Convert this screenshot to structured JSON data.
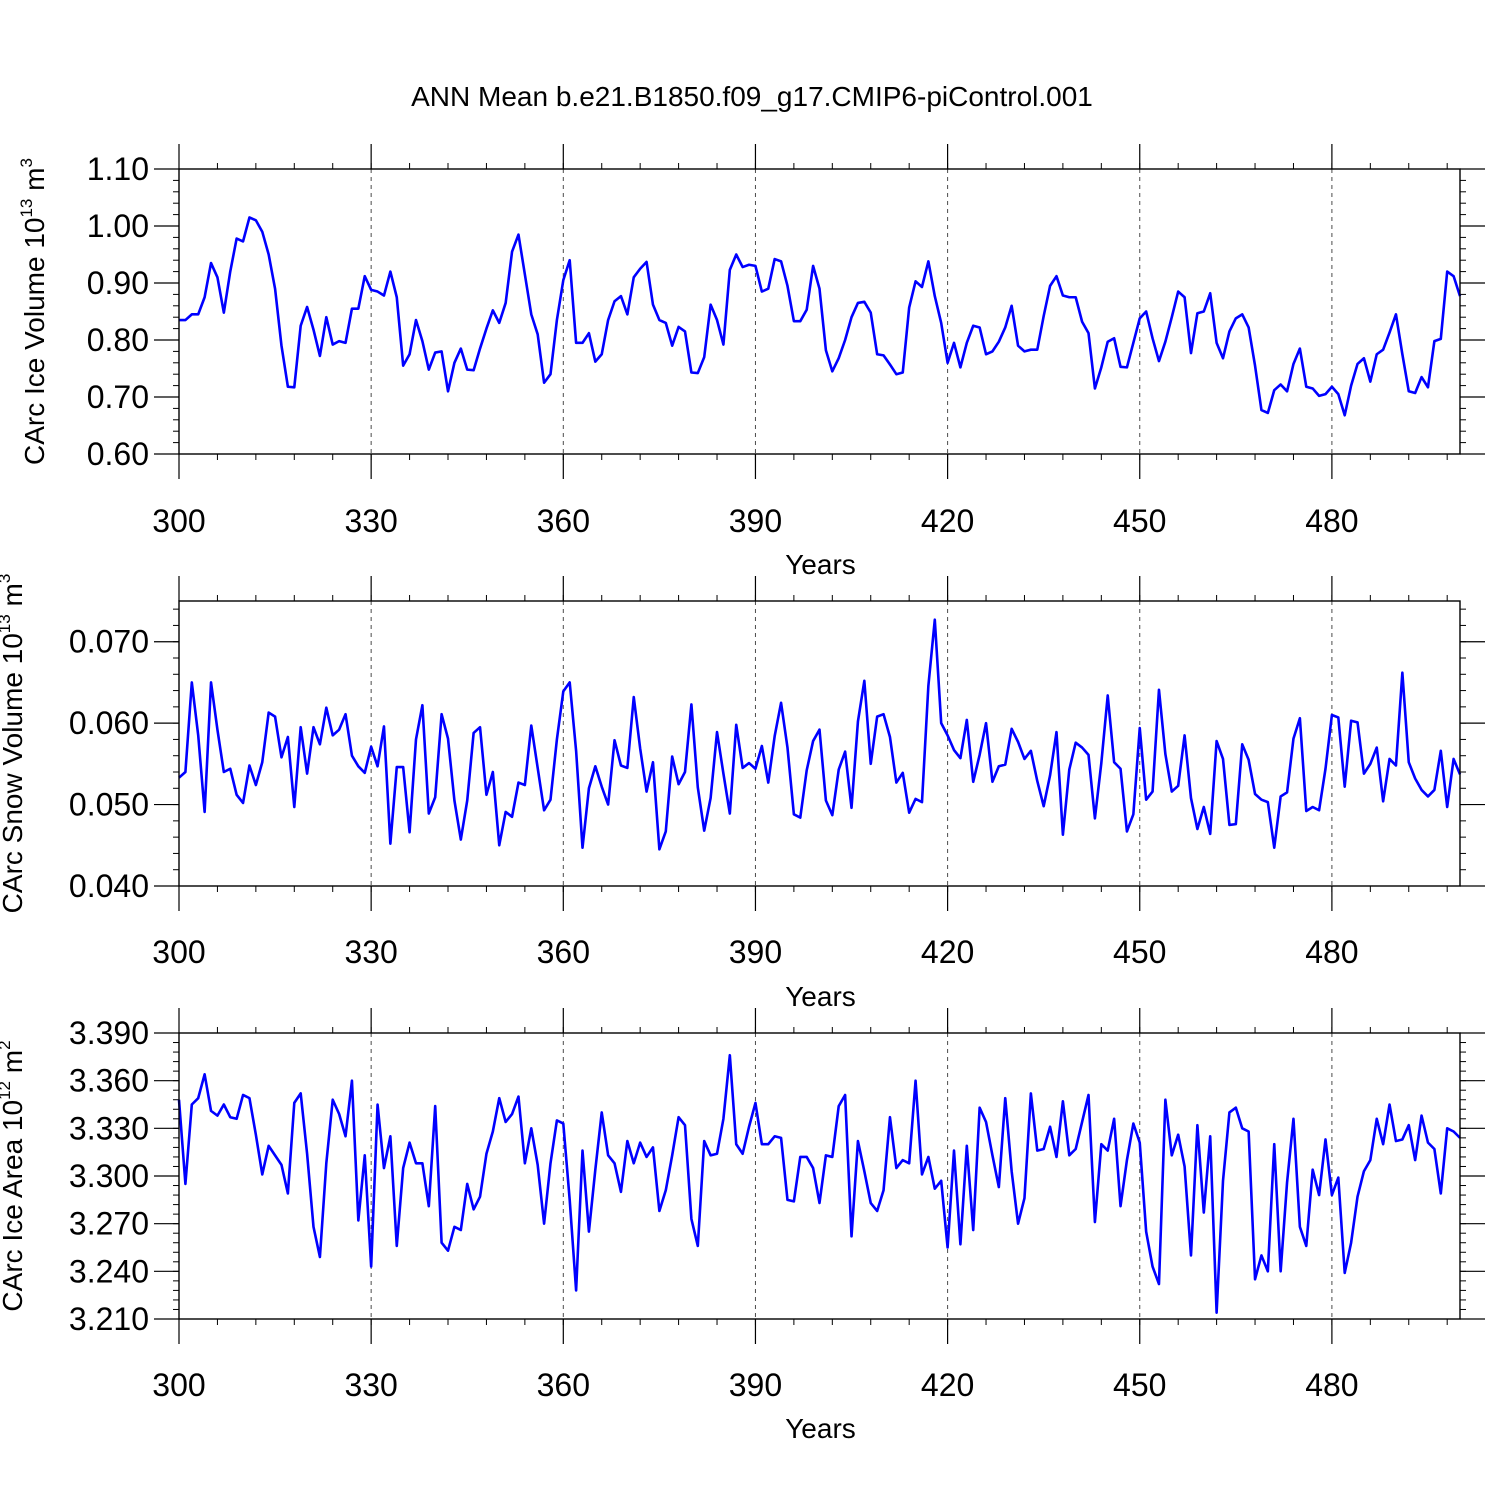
{
  "figure": {
    "title": "ANN Mean b.e21.B1850.f09_g17.CMIP6-piControl.001",
    "line_color": "#0000ff"
  },
  "chart_data": [
    {
      "type": "line",
      "xlabel": "Years",
      "ylabel": "CArc Ice Volume 10",
      "ylabel_exponent": "13",
      "ylabel_unit": "m",
      "ylabel_unit_power": "3",
      "xlim": [
        300,
        500
      ],
      "ylim": [
        0.6,
        1.1
      ],
      "xticks": [
        300,
        330,
        360,
        390,
        420,
        450,
        480
      ],
      "xtick_labels": [
        "300",
        "330",
        "360",
        "390",
        "420",
        "450",
        "480"
      ],
      "yticks": [
        0.6,
        0.7,
        0.8,
        0.9,
        1.0,
        1.1
      ],
      "ytick_labels": [
        "0.60",
        "0.70",
        "0.80",
        "0.90",
        "1.00",
        "1.10"
      ],
      "grid": "vertical-dashed",
      "series": [
        {
          "x_start": 300,
          "values": [
            0.835,
            0.835,
            0.845,
            0.845,
            0.875,
            0.935,
            0.91,
            0.848,
            0.92,
            0.978,
            0.973,
            1.015,
            1.01,
            0.99,
            0.95,
            0.89,
            0.79,
            0.718,
            0.717,
            0.825,
            0.858,
            0.818,
            0.772,
            0.84,
            0.792,
            0.798,
            0.795,
            0.855,
            0.855,
            0.912,
            0.888,
            0.885,
            0.878,
            0.92,
            0.875,
            0.755,
            0.775,
            0.835,
            0.798,
            0.748,
            0.778,
            0.78,
            0.71,
            0.76,
            0.785,
            0.748,
            0.747,
            0.785,
            0.82,
            0.852,
            0.83,
            0.865,
            0.955,
            0.985,
            0.915,
            0.845,
            0.81,
            0.725,
            0.74,
            0.835,
            0.905,
            0.94,
            0.795,
            0.795,
            0.812,
            0.762,
            0.775,
            0.835,
            0.868,
            0.877,
            0.845,
            0.91,
            0.925,
            0.937,
            0.862,
            0.835,
            0.83,
            0.79,
            0.823,
            0.815,
            0.743,
            0.742,
            0.77,
            0.862,
            0.835,
            0.792,
            0.923,
            0.95,
            0.928,
            0.932,
            0.93,
            0.885,
            0.89,
            0.942,
            0.938,
            0.895,
            0.833,
            0.833,
            0.853,
            0.93,
            0.89,
            0.782,
            0.745,
            0.768,
            0.8,
            0.84,
            0.865,
            0.867,
            0.848,
            0.775,
            0.773,
            0.757,
            0.74,
            0.743,
            0.857,
            0.903,
            0.893,
            0.938,
            0.877,
            0.83,
            0.76,
            0.795,
            0.752,
            0.795,
            0.825,
            0.822,
            0.775,
            0.78,
            0.797,
            0.822,
            0.86,
            0.79,
            0.78,
            0.783,
            0.783,
            0.842,
            0.895,
            0.912,
            0.878,
            0.875,
            0.875,
            0.832,
            0.812,
            0.715,
            0.752,
            0.797,
            0.803,
            0.753,
            0.752,
            0.795,
            0.838,
            0.85,
            0.803,
            0.763,
            0.797,
            0.84,
            0.885,
            0.875,
            0.777,
            0.847,
            0.85,
            0.882,
            0.795,
            0.768,
            0.815,
            0.838,
            0.845,
            0.822,
            0.755,
            0.677,
            0.672,
            0.712,
            0.722,
            0.71,
            0.758,
            0.785,
            0.718,
            0.715,
            0.702,
            0.705,
            0.718,
            0.705,
            0.668,
            0.72,
            0.758,
            0.768,
            0.727,
            0.775,
            0.783,
            0.813,
            0.845,
            0.775,
            0.71,
            0.707,
            0.735,
            0.717,
            0.798,
            0.802,
            0.92,
            0.912,
            0.877
          ]
        }
      ]
    },
    {
      "type": "line",
      "xlabel": "Years",
      "ylabel": "CArc Snow Volume 10",
      "ylabel_exponent": "13",
      "ylabel_unit": "m",
      "ylabel_unit_power": "3",
      "xlim": [
        300,
        500
      ],
      "ylim": [
        0.04,
        0.075
      ],
      "xticks": [
        300,
        330,
        360,
        390,
        420,
        450,
        480
      ],
      "xtick_labels": [
        "300",
        "330",
        "360",
        "390",
        "420",
        "450",
        "480"
      ],
      "yticks": [
        0.04,
        0.05,
        0.06,
        0.07
      ],
      "ytick_labels": [
        "0.040",
        "0.050",
        "0.060",
        "0.070"
      ],
      "grid": "vertical-dashed",
      "series": [
        {
          "x_start": 300,
          "values": [
            0.0533,
            0.054,
            0.065,
            0.0585,
            0.0491,
            0.065,
            0.0592,
            0.054,
            0.0544,
            0.0512,
            0.0502,
            0.0548,
            0.0524,
            0.0552,
            0.0613,
            0.0608,
            0.0558,
            0.0583,
            0.0497,
            0.0595,
            0.0538,
            0.0595,
            0.0574,
            0.0619,
            0.0585,
            0.0592,
            0.0611,
            0.056,
            0.0547,
            0.0539,
            0.0571,
            0.0547,
            0.0596,
            0.0452,
            0.0546,
            0.0546,
            0.0466,
            0.058,
            0.0622,
            0.0489,
            0.0509,
            0.0611,
            0.0581,
            0.0505,
            0.0457,
            0.0505,
            0.0588,
            0.0595,
            0.0512,
            0.054,
            0.045,
            0.0491,
            0.0485,
            0.0527,
            0.0524,
            0.0597,
            0.0545,
            0.0493,
            0.0506,
            0.058,
            0.0639,
            0.065,
            0.0566,
            0.0447,
            0.052,
            0.0547,
            0.0522,
            0.05,
            0.0579,
            0.0548,
            0.0545,
            0.0632,
            0.0569,
            0.0516,
            0.0552,
            0.0445,
            0.0467,
            0.0559,
            0.0525,
            0.054,
            0.0623,
            0.0521,
            0.0468,
            0.0508,
            0.0589,
            0.0538,
            0.0489,
            0.0598,
            0.0545,
            0.0551,
            0.0544,
            0.0572,
            0.0527,
            0.0584,
            0.0625,
            0.057,
            0.0488,
            0.0484,
            0.0542,
            0.0578,
            0.0592,
            0.0505,
            0.0487,
            0.0543,
            0.0565,
            0.0496,
            0.0602,
            0.0652,
            0.055,
            0.0608,
            0.0611,
            0.0583,
            0.0527,
            0.0539,
            0.049,
            0.0507,
            0.0503,
            0.0646,
            0.0727,
            0.06,
            0.0585,
            0.0567,
            0.0557,
            0.0604,
            0.0528,
            0.0561,
            0.06,
            0.0528,
            0.0547,
            0.0549,
            0.0593,
            0.0577,
            0.0556,
            0.0566,
            0.0529,
            0.0498,
            0.0536,
            0.0589,
            0.0463,
            0.0543,
            0.0576,
            0.057,
            0.0561,
            0.0483,
            0.0551,
            0.0634,
            0.0552,
            0.0544,
            0.0467,
            0.0488,
            0.0594,
            0.0506,
            0.0516,
            0.0641,
            0.0562,
            0.0516,
            0.0523,
            0.0585,
            0.0508,
            0.047,
            0.0497,
            0.0464,
            0.0578,
            0.0556,
            0.0475,
            0.0476,
            0.0574,
            0.0555,
            0.0513,
            0.0506,
            0.0503,
            0.0447,
            0.051,
            0.0515,
            0.0581,
            0.0606,
            0.0492,
            0.0497,
            0.0493,
            0.0544,
            0.061,
            0.0607,
            0.0522,
            0.0603,
            0.0601,
            0.0538,
            0.055,
            0.057,
            0.0504,
            0.0556,
            0.0548,
            0.0662,
            0.0552,
            0.0532,
            0.0518,
            0.051,
            0.0518,
            0.0566,
            0.0497,
            0.0556,
            0.0537
          ]
        }
      ]
    },
    {
      "type": "line",
      "xlabel": "Years",
      "ylabel": "CArc Ice Area 10",
      "ylabel_exponent": "12",
      "ylabel_unit": "m",
      "ylabel_unit_power": "2",
      "xlim": [
        300,
        500
      ],
      "ylim": [
        3.21,
        3.39
      ],
      "xticks": [
        300,
        330,
        360,
        390,
        420,
        450,
        480
      ],
      "xtick_labels": [
        "300",
        "330",
        "360",
        "390",
        "420",
        "450",
        "480"
      ],
      "yticks": [
        3.21,
        3.24,
        3.27,
        3.3,
        3.33,
        3.36,
        3.39
      ],
      "ytick_labels": [
        "3.210",
        "3.240",
        "3.270",
        "3.300",
        "3.330",
        "3.360",
        "3.390"
      ],
      "grid": "vertical-dashed",
      "series": [
        {
          "x_start": 300,
          "values": [
            3.348,
            3.295,
            3.345,
            3.349,
            3.364,
            3.341,
            3.338,
            3.345,
            3.337,
            3.336,
            3.351,
            3.349,
            3.326,
            3.301,
            3.319,
            3.313,
            3.307,
            3.289,
            3.346,
            3.352,
            3.314,
            3.268,
            3.249,
            3.308,
            3.348,
            3.339,
            3.325,
            3.36,
            3.272,
            3.313,
            3.243,
            3.345,
            3.305,
            3.325,
            3.256,
            3.305,
            3.321,
            3.308,
            3.308,
            3.281,
            3.344,
            3.258,
            3.253,
            3.268,
            3.266,
            3.295,
            3.279,
            3.287,
            3.314,
            3.328,
            3.349,
            3.334,
            3.339,
            3.35,
            3.308,
            3.33,
            3.307,
            3.27,
            3.308,
            3.335,
            3.333,
            3.285,
            3.228,
            3.316,
            3.265,
            3.304,
            3.34,
            3.313,
            3.308,
            3.29,
            3.322,
            3.308,
            3.321,
            3.312,
            3.318,
            3.278,
            3.291,
            3.313,
            3.337,
            3.332,
            3.273,
            3.256,
            3.322,
            3.313,
            3.314,
            3.336,
            3.376,
            3.32,
            3.314,
            3.331,
            3.346,
            3.32,
            3.32,
            3.325,
            3.324,
            3.285,
            3.284,
            3.312,
            3.312,
            3.305,
            3.283,
            3.313,
            3.312,
            3.344,
            3.351,
            3.262,
            3.322,
            3.303,
            3.283,
            3.278,
            3.291,
            3.337,
            3.305,
            3.31,
            3.308,
            3.36,
            3.301,
            3.312,
            3.292,
            3.297,
            3.255,
            3.316,
            3.257,
            3.319,
            3.266,
            3.343,
            3.334,
            3.313,
            3.293,
            3.349,
            3.303,
            3.27,
            3.286,
            3.352,
            3.316,
            3.317,
            3.331,
            3.312,
            3.347,
            3.313,
            3.317,
            3.334,
            3.351,
            3.271,
            3.32,
            3.316,
            3.336,
            3.281,
            3.31,
            3.333,
            3.321,
            3.265,
            3.243,
            3.232,
            3.348,
            3.313,
            3.326,
            3.306,
            3.25,
            3.332,
            3.277,
            3.325,
            3.214,
            3.297,
            3.34,
            3.343,
            3.33,
            3.328,
            3.235,
            3.25,
            3.24,
            3.32,
            3.24,
            3.296,
            3.336,
            3.268,
            3.256,
            3.304,
            3.288,
            3.323,
            3.288,
            3.299,
            3.239,
            3.258,
            3.287,
            3.303,
            3.31,
            3.336,
            3.32,
            3.345,
            3.322,
            3.323,
            3.332,
            3.31,
            3.338,
            3.321,
            3.317,
            3.289,
            3.33,
            3.328,
            3.324
          ]
        }
      ]
    }
  ]
}
